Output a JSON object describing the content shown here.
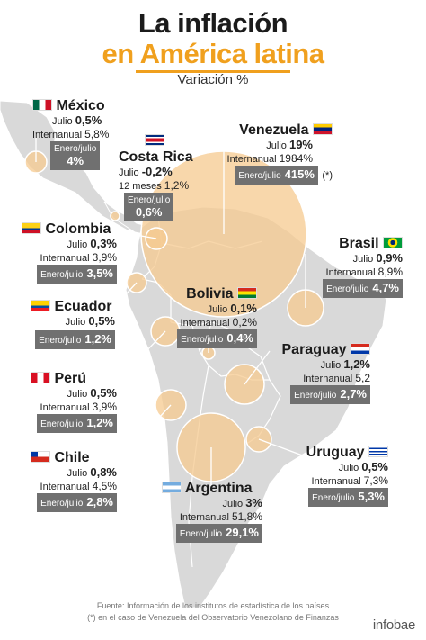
{
  "header": {
    "title_line1": "La inflación",
    "title_line2": "en América latina",
    "subtitle": "Variación %"
  },
  "labels": {
    "monthly": "Julio",
    "annual": "Internanual",
    "annual_cr": "12 meses",
    "ytd": "Enero/julio"
  },
  "countries": {
    "mexico": {
      "name": "México",
      "july": "0,5%",
      "annual": "5,8%",
      "ytd": "4%"
    },
    "costa_rica": {
      "name": "Costa Rica",
      "july": "-0,2%",
      "annual": "1,2%",
      "ytd": "0,6%"
    },
    "venezuela": {
      "name": "Venezuela",
      "july": "19%",
      "annual": "1984%",
      "ytd": "415%",
      "note": "(*)"
    },
    "colombia": {
      "name": "Colombia",
      "july": "0,3%",
      "annual": "3,9%",
      "ytd": "3,5%"
    },
    "brasil": {
      "name": "Brasil",
      "july": "0,9%",
      "annual": "8,9%",
      "ytd": "4,7%"
    },
    "ecuador": {
      "name": "Ecuador",
      "july": "0,5%",
      "ytd": "1,2%"
    },
    "bolivia": {
      "name": "Bolivia",
      "july": "0,1%",
      "annual": "0,2%",
      "ytd": "0,4%"
    },
    "paraguay": {
      "name": "Paraguay",
      "july": "1,2%",
      "annual": "5,2",
      "ytd": "2,7%"
    },
    "peru": {
      "name": "Perú",
      "july": "0,5%",
      "annual": "3,9%",
      "ytd": "1,2%"
    },
    "chile": {
      "name": "Chile",
      "july": "0,8%",
      "annual": "4,5%",
      "ytd": "2,8%"
    },
    "uruguay": {
      "name": "Uruguay",
      "july": "0,5%",
      "annual": "7,3%",
      "ytd": "5,3%"
    },
    "argentina": {
      "name": "Argentina",
      "july": "3%",
      "annual": "51,8%",
      "ytd": "29,1%"
    }
  },
  "footer": {
    "source": "Fuente: Información de los institutos de estadística de los países",
    "note": "(*) en el caso de Venezuela del Observatorio Venezolano de Finanzas",
    "brand": "infobae"
  },
  "colors": {
    "title_accent": "#f0a01e",
    "bubble": "#f5c98f",
    "land": "#d9d9d9",
    "box": "#707070"
  }
}
